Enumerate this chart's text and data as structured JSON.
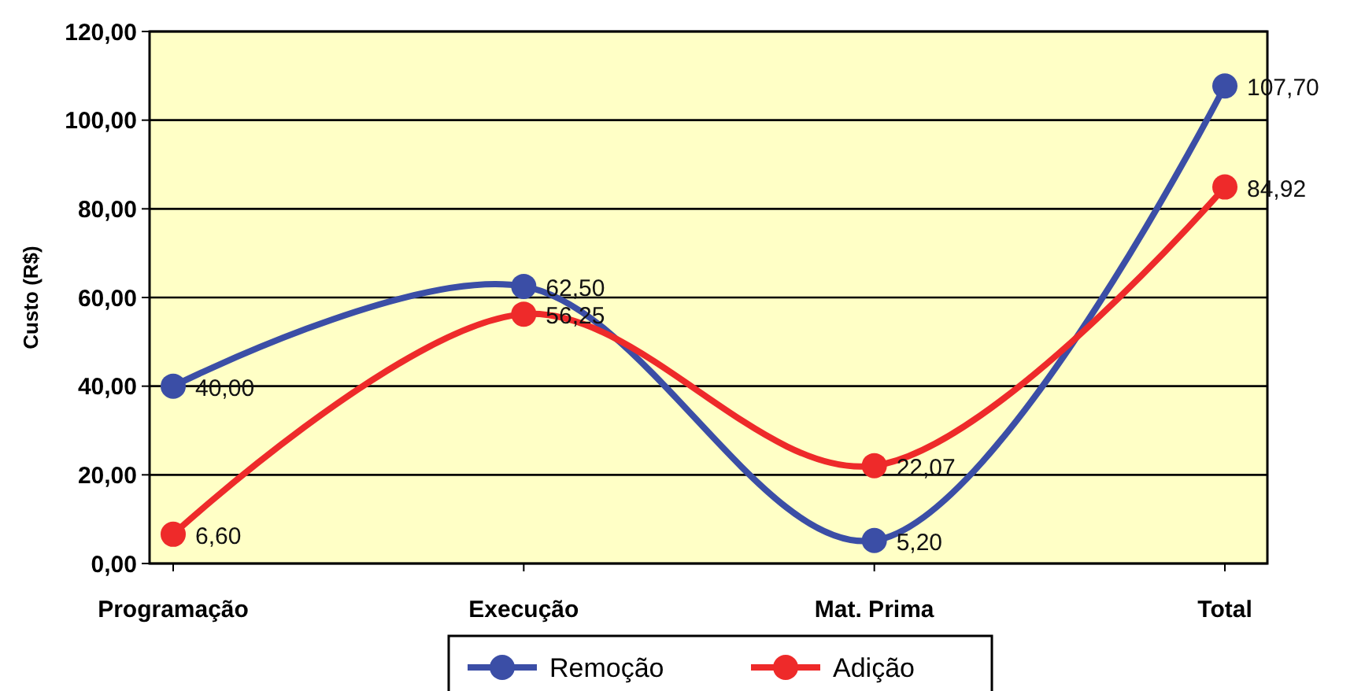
{
  "chart_data": {
    "type": "line",
    "ylabel": "Custo (R$)",
    "categories": [
      "Programação",
      "Execução",
      "Mat. Prima",
      "Total"
    ],
    "series": [
      {
        "name": "Remoção",
        "color": "#3b4ea6",
        "values": [
          40.0,
          62.5,
          5.2,
          107.7
        ],
        "value_labels": [
          "40,00",
          "62,50",
          "5,20",
          "107,70"
        ]
      },
      {
        "name": "Adição",
        "color": "#ee2a2a",
        "values": [
          6.6,
          56.25,
          22.07,
          84.92
        ],
        "value_labels": [
          "6,60",
          "56,25",
          "22,07",
          "84,92"
        ]
      }
    ],
    "ylim": [
      0,
      120
    ],
    "yticks": [
      {
        "value": 0,
        "label": "0,00"
      },
      {
        "value": 20,
        "label": "20,00"
      },
      {
        "value": 40,
        "label": "40,00"
      },
      {
        "value": 60,
        "label": "60,00"
      },
      {
        "value": 80,
        "label": "80,00"
      },
      {
        "value": 100,
        "label": "100,00"
      },
      {
        "value": 120,
        "label": "120,00"
      }
    ],
    "grid": "y",
    "legend": "bottom",
    "marker": "circle",
    "line_style": "solid"
  }
}
